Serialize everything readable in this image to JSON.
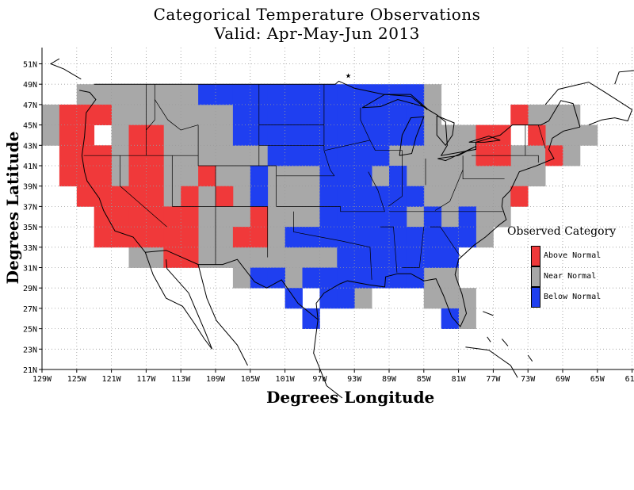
{
  "title": "Categorical Temperature Observations",
  "subtitle": "Valid: Apr-May-Jun 2013",
  "xlabel": "Degrees Longitude",
  "ylabel": "Degrees Latitude",
  "legend": {
    "title": "Observed Category",
    "items": [
      {
        "label": "Above Normal",
        "color": "#f0393a"
      },
      {
        "label": "Near Normal",
        "color": "#a8a8a8"
      },
      {
        "label": "Below Normal",
        "color": "#1f3ff0"
      }
    ]
  },
  "map_data": {
    "lon_range": [
      -129,
      -61
    ],
    "lat_range": [
      21,
      52
    ],
    "x_ticks": [
      "129W",
      "125W",
      "121W",
      "117W",
      "113W",
      "109W",
      "105W",
      "101W",
      "97W",
      "93W",
      "89W",
      "85W",
      "81W",
      "77W",
      "73W",
      "69W",
      "65W",
      "61W"
    ],
    "y_ticks": [
      "21N",
      "23N",
      "25N",
      "27N",
      "29N",
      "31N",
      "33N",
      "35N",
      "37N",
      "39N",
      "41N",
      "43N",
      "45N",
      "47N",
      "49N"
    ],
    "y_top_tick": "51N",
    "grid_cell_deg": 2,
    "cells": {
      "above": [
        [
          -126,
          46
        ],
        [
          -126,
          44
        ],
        [
          -124,
          46
        ],
        [
          -124,
          44
        ],
        [
          -122,
          46
        ],
        [
          -124,
          42
        ],
        [
          -126,
          42
        ],
        [
          -126,
          40
        ],
        [
          -124,
          40
        ],
        [
          -122,
          42
        ],
        [
          -122,
          40
        ],
        [
          -118,
          44
        ],
        [
          -116,
          44
        ],
        [
          -118,
          42
        ],
        [
          -116,
          42
        ],
        [
          -118,
          40
        ],
        [
          -116,
          40
        ],
        [
          -118,
          38
        ],
        [
          -116,
          38
        ],
        [
          -124,
          38
        ],
        [
          -122,
          38
        ],
        [
          -120,
          38
        ],
        [
          -118,
          36
        ],
        [
          -122,
          36
        ],
        [
          -120,
          36
        ],
        [
          -116,
          36
        ],
        [
          -122,
          34
        ],
        [
          -120,
          34
        ],
        [
          -118,
          34
        ],
        [
          -116,
          34
        ],
        [
          -114,
          34
        ],
        [
          -112,
          34
        ],
        [
          -114,
          36
        ],
        [
          -112,
          36
        ],
        [
          -112,
          38
        ],
        [
          -110,
          40
        ],
        [
          -108,
          38
        ],
        [
          -104,
          36
        ],
        [
          -104,
          34
        ],
        [
          -106,
          34
        ],
        [
          -114,
          32
        ],
        [
          -112,
          32
        ],
        [
          -78,
          42
        ],
        [
          -76,
          42
        ],
        [
          -78,
          44
        ],
        [
          -76,
          44
        ],
        [
          -74,
          38
        ],
        [
          -74,
          46
        ],
        [
          -72,
          44
        ],
        [
          -70,
          42
        ]
      ],
      "below": [
        [
          -110,
          48
        ],
        [
          -108,
          48
        ],
        [
          -106,
          48
        ],
        [
          -104,
          48
        ],
        [
          -102,
          48
        ],
        [
          -100,
          48
        ],
        [
          -98,
          48
        ],
        [
          -96,
          48
        ],
        [
          -94,
          48
        ],
        [
          -92,
          48
        ],
        [
          -90,
          48
        ],
        [
          -88,
          48
        ],
        [
          -86,
          48
        ],
        [
          -106,
          46
        ],
        [
          -104,
          46
        ],
        [
          -102,
          46
        ],
        [
          -100,
          46
        ],
        [
          -98,
          46
        ],
        [
          -96,
          46
        ],
        [
          -94,
          46
        ],
        [
          -92,
          46
        ],
        [
          -90,
          46
        ],
        [
          -88,
          46
        ],
        [
          -86,
          46
        ],
        [
          -106,
          44
        ],
        [
          -104,
          44
        ],
        [
          -102,
          44
        ],
        [
          -100,
          44
        ],
        [
          -98,
          44
        ],
        [
          -96,
          44
        ],
        [
          -94,
          44
        ],
        [
          -92,
          44
        ],
        [
          -90,
          44
        ],
        [
          -88,
          44
        ],
        [
          -86,
          44
        ],
        [
          -102,
          42
        ],
        [
          -100,
          42
        ],
        [
          -98,
          42
        ],
        [
          -96,
          42
        ],
        [
          -94,
          42
        ],
        [
          -92,
          42
        ],
        [
          -90,
          42
        ],
        [
          -104,
          40
        ],
        [
          -96,
          40
        ],
        [
          -94,
          40
        ],
        [
          -92,
          40
        ],
        [
          -88,
          40
        ],
        [
          -104,
          38
        ],
        [
          -96,
          38
        ],
        [
          -94,
          38
        ],
        [
          -92,
          38
        ],
        [
          -90,
          38
        ],
        [
          -88,
          38
        ],
        [
          -86,
          38
        ],
        [
          -96,
          36
        ],
        [
          -94,
          36
        ],
        [
          -92,
          36
        ],
        [
          -90,
          36
        ],
        [
          -88,
          36
        ],
        [
          -84,
          36
        ],
        [
          -80,
          36
        ],
        [
          -100,
          34
        ],
        [
          -98,
          34
        ],
        [
          -96,
          34
        ],
        [
          -94,
          34
        ],
        [
          -92,
          34
        ],
        [
          -90,
          34
        ],
        [
          -88,
          34
        ],
        [
          -86,
          34
        ],
        [
          -84,
          34
        ],
        [
          -82,
          34
        ],
        [
          -80,
          34
        ],
        [
          -94,
          32
        ],
        [
          -92,
          32
        ],
        [
          -90,
          32
        ],
        [
          -88,
          32
        ],
        [
          -86,
          32
        ],
        [
          -84,
          32
        ],
        [
          -82,
          32
        ],
        [
          -104,
          30
        ],
        [
          -102,
          30
        ],
        [
          -98,
          30
        ],
        [
          -96,
          30
        ],
        [
          -94,
          30
        ],
        [
          -92,
          30
        ],
        [
          -90,
          30
        ],
        [
          -88,
          30
        ],
        [
          -86,
          30
        ],
        [
          -100,
          28
        ],
        [
          -96,
          28
        ],
        [
          -94,
          28
        ],
        [
          -98,
          26
        ],
        [
          -82,
          26
        ]
      ],
      "near": [
        [
          -124,
          48
        ],
        [
          -122,
          48
        ],
        [
          -120,
          48
        ],
        [
          -118,
          48
        ],
        [
          -116,
          48
        ],
        [
          -114,
          48
        ],
        [
          -112,
          48
        ],
        [
          -84,
          48
        ],
        [
          -128,
          46
        ],
        [
          -120,
          46
        ],
        [
          -118,
          46
        ],
        [
          -116,
          46
        ],
        [
          -114,
          46
        ],
        [
          -112,
          46
        ],
        [
          -110,
          46
        ],
        [
          -108,
          46
        ],
        [
          -84,
          46
        ],
        [
          -72,
          46
        ],
        [
          -70,
          46
        ],
        [
          -68,
          46
        ],
        [
          -128,
          44
        ],
        [
          -120,
          44
        ],
        [
          -114,
          44
        ],
        [
          -112,
          44
        ],
        [
          -110,
          44
        ],
        [
          -108,
          44
        ],
        [
          -84,
          44
        ],
        [
          -82,
          44
        ],
        [
          -80,
          44
        ],
        [
          -70,
          44
        ],
        [
          -68,
          44
        ],
        [
          -66,
          44
        ],
        [
          -120,
          42
        ],
        [
          -114,
          42
        ],
        [
          -112,
          42
        ],
        [
          -110,
          42
        ],
        [
          -108,
          42
        ],
        [
          -106,
          42
        ],
        [
          -104,
          42
        ],
        [
          -88,
          42
        ],
        [
          -86,
          42
        ],
        [
          -84,
          42
        ],
        [
          -82,
          42
        ],
        [
          -80,
          42
        ],
        [
          -74,
          42
        ],
        [
          -72,
          42
        ],
        [
          -68,
          42
        ],
        [
          -120,
          40
        ],
        [
          -114,
          40
        ],
        [
          -112,
          40
        ],
        [
          -108,
          40
        ],
        [
          -106,
          40
        ],
        [
          -102,
          40
        ],
        [
          -100,
          40
        ],
        [
          -98,
          40
        ],
        [
          -90,
          40
        ],
        [
          -86,
          40
        ],
        [
          -84,
          40
        ],
        [
          -82,
          40
        ],
        [
          -80,
          40
        ],
        [
          -78,
          40
        ],
        [
          -76,
          40
        ],
        [
          -74,
          40
        ],
        [
          -72,
          40
        ],
        [
          -114,
          38
        ],
        [
          -110,
          38
        ],
        [
          -106,
          38
        ],
        [
          -104,
          38
        ],
        [
          -102,
          38
        ],
        [
          -100,
          38
        ],
        [
          -98,
          38
        ],
        [
          -84,
          38
        ],
        [
          -82,
          38
        ],
        [
          -80,
          38
        ],
        [
          -78,
          38
        ],
        [
          -76,
          38
        ],
        [
          -110,
          36
        ],
        [
          -108,
          36
        ],
        [
          -106,
          36
        ],
        [
          -104,
          36
        ],
        [
          -102,
          36
        ],
        [
          -100,
          36
        ],
        [
          -98,
          36
        ],
        [
          -86,
          36
        ],
        [
          -82,
          36
        ],
        [
          -78,
          36
        ],
        [
          -76,
          36
        ],
        [
          -110,
          34
        ],
        [
          -108,
          34
        ],
        [
          -102,
          34
        ],
        [
          -78,
          34
        ],
        [
          -118,
          32
        ],
        [
          -116,
          32
        ],
        [
          -110,
          32
        ],
        [
          -108,
          32
        ],
        [
          -106,
          32
        ],
        [
          -104,
          32
        ],
        [
          -102,
          32
        ],
        [
          -100,
          32
        ],
        [
          -98,
          32
        ],
        [
          -96,
          32
        ],
        [
          -106,
          30
        ],
        [
          -100,
          30
        ],
        [
          -84,
          30
        ],
        [
          -82,
          30
        ],
        [
          -92,
          28
        ],
        [
          -84,
          28
        ],
        [
          -82,
          28
        ],
        [
          -80,
          28
        ],
        [
          -80,
          26
        ]
      ]
    },
    "star_label": "★"
  },
  "colors": {
    "above": "#f0393a",
    "near": "#a8a8a8",
    "below": "#1f3ff0",
    "grid": "#9a9a9a"
  }
}
